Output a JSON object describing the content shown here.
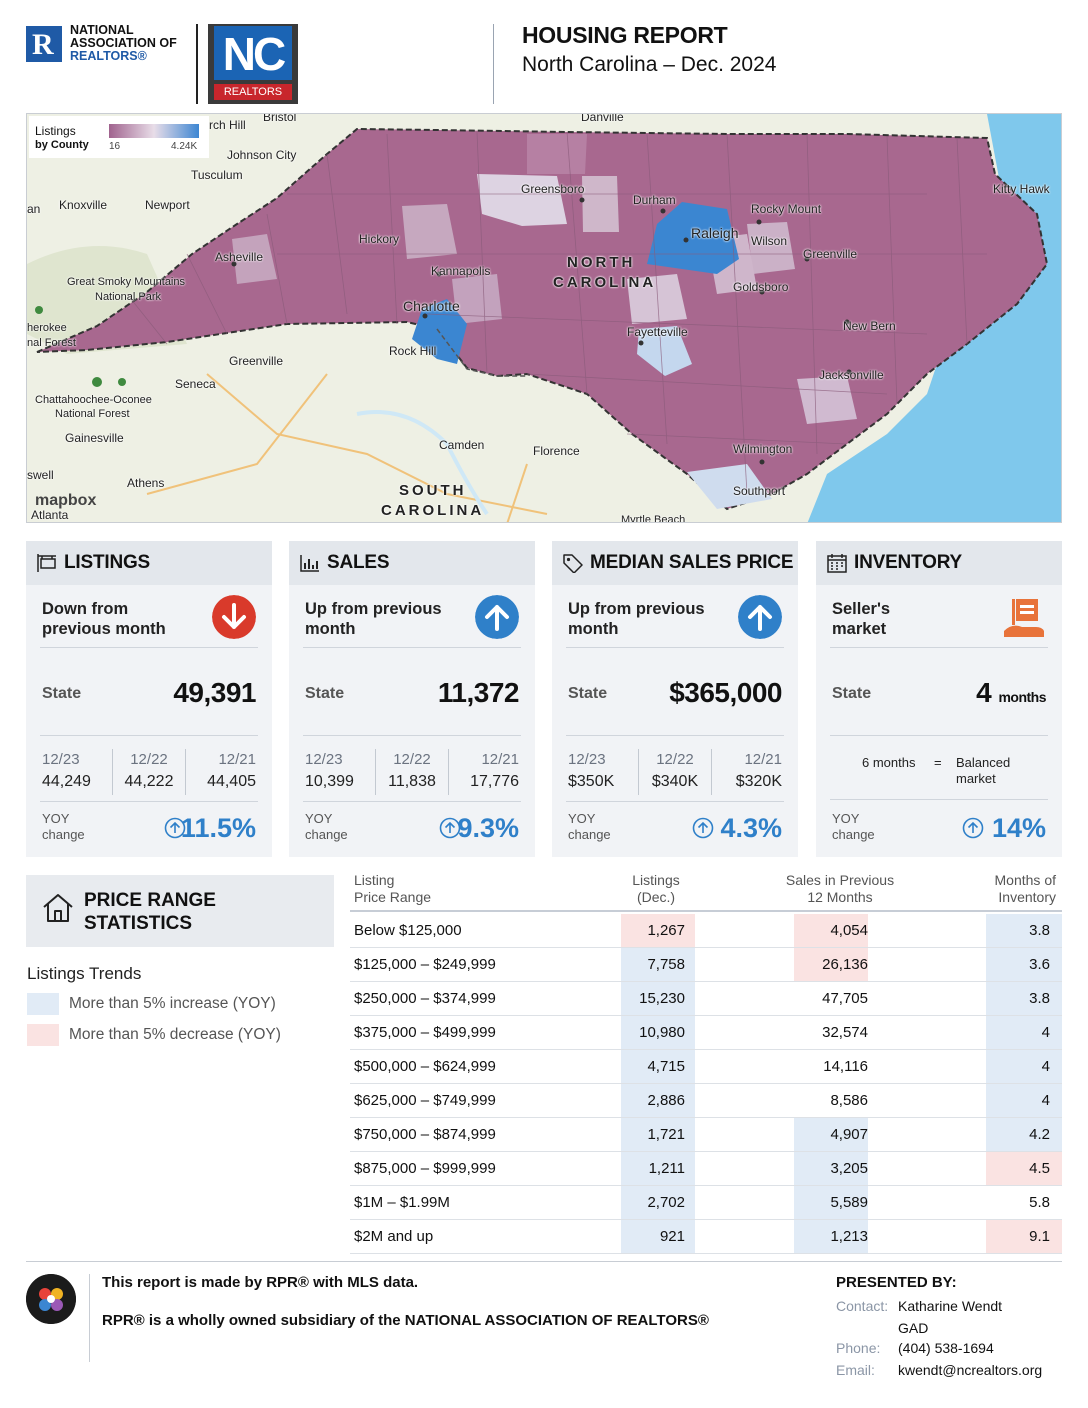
{
  "header": {
    "nar_logo_line1": "NATIONAL",
    "nar_logo_line2": "ASSOCIATION OF",
    "nar_logo_line3": "REALTORS®",
    "nc_logo_main": "NC",
    "nc_logo_sub": "REALTORS",
    "title": "HOUSING REPORT",
    "subtitle": "North Carolina  –  Dec. 2024"
  },
  "map": {
    "legend_title": "Listings",
    "legend_subtitle": "by County",
    "legend_min": "16",
    "legend_max": "4.24K",
    "attribution": "mapbox",
    "labels": {
      "state_nc_1": "NORTH",
      "state_nc_2": "CAROLINA",
      "state_sc_1": "SOUTH",
      "state_sc_2": "CAROLINA",
      "greensboro": "Greensboro",
      "durham": "Durham",
      "raleigh": "Raleigh",
      "charlotte": "Charlotte",
      "fayetteville": "Fayetteville",
      "wilmington": "Wilmington",
      "asheville": "Asheville",
      "hickory": "Hickory",
      "kannapolis": "Kannapolis",
      "rocky_mount": "Rocky Mount",
      "wilson": "Wilson",
      "greenville_nc": "Greenville",
      "goldsboro": "Goldsboro",
      "new_bern": "New Bern",
      "jacksonville": "Jacksonville",
      "southport": "Southport",
      "kitty_hawk": "Kitty Hawk",
      "danville": "Danville",
      "bristol": "Bristol",
      "johnson_city": "Johnson City",
      "tusculum": "Tusculum",
      "knoxville": "Knoxville",
      "newport": "Newport",
      "smoky": "Great Smoky Mountains",
      "smoky2": "National Park",
      "greenville_sc": "Greenville",
      "seneca": "Seneca",
      "chattahoochee": "Chattahoochee-Oconee",
      "chattahoochee2": "National Forest",
      "gainesville": "Gainesville",
      "rock_hill": "Rock Hill",
      "camden": "Camden",
      "florence": "Florence",
      "athens": "Athens",
      "atlanta": "Atlanta",
      "myrtle": "Myrtle Beach",
      "cherokee": "herokee",
      "cherokee2": "nal Forest",
      "rch_hill": "rch Hill",
      "an": "an",
      "swell": "swell"
    }
  },
  "cards": [
    {
      "title": "LISTINGS",
      "icon": "sign-icon",
      "trend": "Down from previous month",
      "trend_direction": "down",
      "state_label": "State",
      "state_value": "49,391",
      "history": [
        {
          "year": "12/23",
          "value": "44,249"
        },
        {
          "year": "12/22",
          "value": "44,222"
        },
        {
          "year": "12/21",
          "value": "44,405"
        }
      ],
      "yoy_label": "YOY change",
      "yoy_value": "11.5%"
    },
    {
      "title": "SALES",
      "icon": "bar-chart-icon",
      "trend": "Up from previous month",
      "trend_direction": "up",
      "state_label": "State",
      "state_value": "11,372",
      "history": [
        {
          "year": "12/23",
          "value": "10,399"
        },
        {
          "year": "12/22",
          "value": "11,838"
        },
        {
          "year": "12/21",
          "value": "17,776"
        }
      ],
      "yoy_label": "YOY change",
      "yoy_value": "9.3%"
    },
    {
      "title": "MEDIAN SALES PRICE",
      "icon": "price-tag-icon",
      "trend": "Up from previous month",
      "trend_direction": "up",
      "state_label": "State",
      "state_value": "$365,000",
      "history": [
        {
          "year": "12/23",
          "value": "$350K"
        },
        {
          "year": "12/22",
          "value": "$340K"
        },
        {
          "year": "12/21",
          "value": "$320K"
        }
      ],
      "yoy_label": "YOY change",
      "yoy_value": "4.3%"
    },
    {
      "title": "INVENTORY",
      "icon": "calendar-icon",
      "trend": "Seller's market",
      "state_label": "State",
      "state_value": "4",
      "state_unit": "months",
      "balanced_left": "6 months",
      "balanced_eq": "=",
      "balanced_right": "Balanced market",
      "yoy_label": "YOY change",
      "yoy_value": "14%"
    }
  ],
  "price_range": {
    "title_line1": "PRICE RANGE",
    "title_line2": "STATISTICS",
    "trends_title": "Listings Trends",
    "legend_increase": "More than 5% increase (YOY)",
    "legend_decrease": "More than 5% decrease (YOY)",
    "colors": {
      "increase": "#e1ebf6",
      "decrease": "#fae3e2"
    },
    "headers": {
      "range_1": "Listing",
      "range_2": "Price Range",
      "listings_1": "Listings",
      "listings_2": "(Dec.)",
      "sales_1": "Sales in Previous",
      "sales_2": "12 Months",
      "moi_1": "Months of",
      "moi_2": "Inventory"
    },
    "rows": [
      {
        "range": "Below $125,000",
        "listings": "1,267",
        "sales": "4,054",
        "moi": "3.8",
        "l_hl": "red",
        "s_hl": "red",
        "m_hl": "blue"
      },
      {
        "range": "$125,000  –  $249,999",
        "listings": "7,758",
        "sales": "26,136",
        "moi": "3.6",
        "l_hl": "blue",
        "s_hl": "red",
        "m_hl": "blue"
      },
      {
        "range": "$250,000  –  $374,999",
        "listings": "15,230",
        "sales": "47,705",
        "moi": "3.8",
        "l_hl": "blue",
        "s_hl": "",
        "m_hl": "blue"
      },
      {
        "range": "$375,000  –  $499,999",
        "listings": "10,980",
        "sales": "32,574",
        "moi": "4",
        "l_hl": "blue",
        "s_hl": "",
        "m_hl": "blue"
      },
      {
        "range": "$500,000  –  $624,999",
        "listings": "4,715",
        "sales": "14,116",
        "moi": "4",
        "l_hl": "blue",
        "s_hl": "",
        "m_hl": "blue"
      },
      {
        "range": "$625,000  –  $749,999",
        "listings": "2,886",
        "sales": "8,586",
        "moi": "4",
        "l_hl": "blue",
        "s_hl": "",
        "m_hl": "blue"
      },
      {
        "range": "$750,000  –  $874,999",
        "listings": "1,721",
        "sales": "4,907",
        "moi": "4.2",
        "l_hl": "blue",
        "s_hl": "blue",
        "m_hl": "blue"
      },
      {
        "range": "$875,000  –  $999,999",
        "listings": "1,211",
        "sales": "3,205",
        "moi": "4.5",
        "l_hl": "blue",
        "s_hl": "blue",
        "m_hl": "red"
      },
      {
        "range": "$1M  –  $1.99M",
        "listings": "2,702",
        "sales": "5,589",
        "moi": "5.8",
        "l_hl": "blue",
        "s_hl": "blue",
        "m_hl": ""
      },
      {
        "range": "$2M  and  up",
        "listings": "921",
        "sales": "1,213",
        "moi": "9.1",
        "l_hl": "blue",
        "s_hl": "blue",
        "m_hl": "red"
      }
    ]
  },
  "footer": {
    "line1": "This report is made by RPR® with MLS data.",
    "line2": "RPR® is a wholly owned subsidiary of the NATIONAL ASSOCIATION OF REALTORS®",
    "presented_by": "PRESENTED BY:",
    "contact_label": "Contact:",
    "contact_name": "Katharine Wendt",
    "contact_company": "GAD",
    "phone_label": "Phone:",
    "phone": "(404) 538-1694",
    "email_label": "Email:",
    "email": "kwendt@ncrealtors.org"
  }
}
